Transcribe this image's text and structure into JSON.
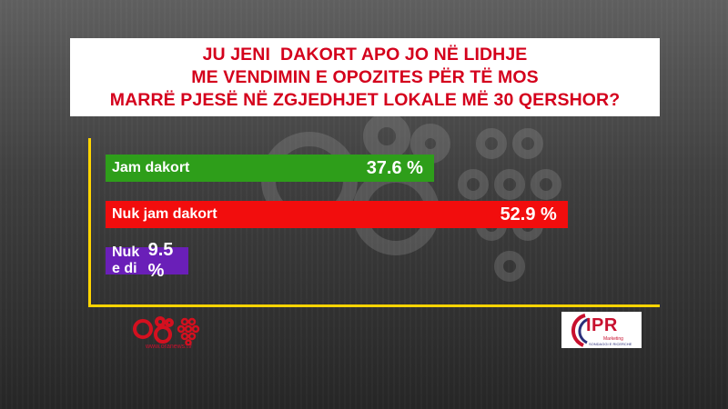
{
  "title_lines": [
    "JU JENI  DAKORT APO JO NË LIDHJE",
    "ME VENDIMIN E OPOZITES PËR TË MOS",
    "MARRË PJESË NË ZGJEDHJET LOKALE MË 30 QERSHOR?"
  ],
  "colors": {
    "title_text": "#d4001c",
    "axis": "#ffd400",
    "background_top": "#5f5f5f",
    "background_bottom": "#262626"
  },
  "chart_data": {
    "type": "bar",
    "orientation": "horizontal",
    "categories": [
      "Jam dakort",
      "Nuk jam dakort",
      "Nuk e di"
    ],
    "values": [
      37.6,
      52.9,
      9.5
    ],
    "value_labels": [
      "37.6 %",
      "52.9 %",
      "9.5 %"
    ],
    "unit": "%",
    "colors": [
      "#2e9e1a",
      "#f20d0d",
      "#6a1fb8"
    ],
    "title": "JU JENI  DAKORT APO JO NË LIDHJE ME VENDIMIN E OPOZITES PËR TË MOS MARRË PJESË NË ZGJEDHJET LOKALE MË 30 QERSHOR?",
    "xlabel": "",
    "ylabel": "",
    "grid": false,
    "legend": "none"
  },
  "footer": {
    "site_text": "www.oranews.tv",
    "ipr_logo_text": "IPR",
    "ipr_sub1": "Marketing",
    "ipr_sub2": "SONDAGGI E RICERCHE"
  }
}
